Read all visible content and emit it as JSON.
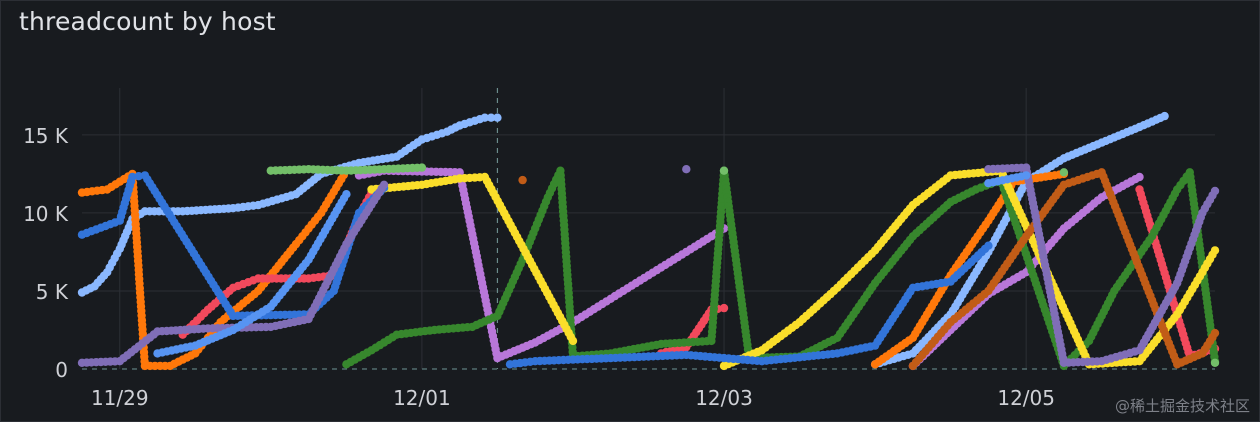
{
  "panel": {
    "title": "threadcount by host"
  },
  "watermark": "@稀土掘金技术社区",
  "chart_data": {
    "type": "scatter",
    "title": "threadcount by host",
    "xlabel": "",
    "ylabel": "",
    "x_domain": [
      "2023-11-28T18:00",
      "2023-12-06T06:00"
    ],
    "ylim": [
      0,
      18000
    ],
    "y_ticks": [
      0,
      5000,
      10000,
      15000
    ],
    "y_tick_labels": [
      "0",
      "5 K",
      "10 K",
      "15 K"
    ],
    "x_ticks": [
      "2023-11-29T00:00",
      "2023-12-01T00:00",
      "2023-12-03T00:00",
      "2023-12-05T00:00"
    ],
    "x_tick_labels": [
      "11/29",
      "12/01",
      "12/03",
      "12/05"
    ],
    "marker_time": "2023-12-01T12:00",
    "grid": true,
    "legend": "none",
    "colors": [
      "#8ab8ff",
      "#ff780a",
      "#f2495c",
      "#b877d9",
      "#37872d",
      "#fade2a",
      "#3274d9",
      "#c15c17",
      "#806eb7",
      "#73bf69",
      "#5794f2"
    ],
    "series": [
      {
        "color": "#8ab8ff",
        "points": [
          [
            "2023-11-28T18:00",
            4900
          ],
          [
            "2023-11-28T20:00",
            5300
          ],
          [
            "2023-11-28T22:00",
            6200
          ],
          [
            "2023-11-29T00:00",
            7700
          ],
          [
            "2023-11-29T02:00",
            9600
          ],
          [
            "2023-11-29T04:00",
            10100
          ],
          [
            "2023-11-29T10:00",
            10100
          ],
          [
            "2023-11-29T18:00",
            10300
          ],
          [
            "2023-11-29T22:00",
            10500
          ],
          [
            "2023-11-30T04:00",
            11200
          ],
          [
            "2023-11-30T08:00",
            12500
          ],
          [
            "2023-11-30T14:00",
            13200
          ],
          [
            "2023-11-30T20:00",
            13600
          ],
          [
            "2023-12-01T00:00",
            14700
          ],
          [
            "2023-12-01T04:00",
            15200
          ],
          [
            "2023-12-01T06:00",
            15600
          ],
          [
            "2023-12-01T10:00",
            16100
          ],
          [
            "2023-12-01T12:00",
            16100
          ],
          [
            "2023-12-04T00:00",
            300
          ],
          [
            "2023-12-04T06:00",
            1000
          ],
          [
            "2023-12-04T12:00",
            3500
          ],
          [
            "2023-12-04T18:00",
            7500
          ],
          [
            "2023-12-05T00:00",
            12000
          ],
          [
            "2023-12-05T06:00",
            13500
          ],
          [
            "2023-12-05T12:00",
            14500
          ],
          [
            "2023-12-05T18:00",
            15500
          ],
          [
            "2023-12-05T22:00",
            16200
          ]
        ]
      },
      {
        "color": "#ff780a",
        "points": [
          [
            "2023-11-28T18:00",
            11300
          ],
          [
            "2023-11-28T22:00",
            11500
          ],
          [
            "2023-11-29T02:00",
            12500
          ],
          [
            "2023-11-29T04:00",
            200
          ],
          [
            "2023-11-29T08:00",
            200
          ],
          [
            "2023-11-29T12:00",
            1000
          ],
          [
            "2023-11-29T16:00",
            3000
          ],
          [
            "2023-11-29T22:00",
            5000
          ],
          [
            "2023-11-30T04:00",
            8000
          ],
          [
            "2023-11-30T08:00",
            10000
          ],
          [
            "2023-11-30T12:00",
            12700
          ],
          [
            "2023-12-04T00:00",
            300
          ],
          [
            "2023-12-04T06:00",
            2000
          ],
          [
            "2023-12-04T12:00",
            6000
          ],
          [
            "2023-12-04T18:00",
            9500
          ],
          [
            "2023-12-04T22:00",
            12000
          ],
          [
            "2023-12-05T06:00",
            12500
          ]
        ]
      },
      {
        "color": "#f2495c",
        "points": [
          [
            "2023-11-29T10:00",
            2200
          ],
          [
            "2023-11-29T14:00",
            3800
          ],
          [
            "2023-11-29T18:00",
            5200
          ],
          [
            "2023-11-29T22:00",
            5800
          ],
          [
            "2023-11-30T06:00",
            5800
          ],
          [
            "2023-11-30T10:00",
            6000
          ],
          [
            "2023-11-30T14:00",
            9800
          ],
          [
            "2023-11-30T16:00",
            11300
          ],
          [
            "2023-12-02T14:00",
            1000
          ],
          [
            "2023-12-02T18:00",
            1400
          ],
          [
            "2023-12-02T22:00",
            3800
          ],
          [
            "2023-12-03T00:00",
            3900
          ],
          [
            "2023-12-05T18:00",
            11500
          ],
          [
            "2023-12-06T02:00",
            800
          ],
          [
            "2023-12-06T06:00",
            1300
          ]
        ]
      },
      {
        "color": "#b877d9",
        "points": [
          [
            "2023-11-30T14:00",
            12400
          ],
          [
            "2023-11-30T18:00",
            12700
          ],
          [
            "2023-12-01T06:00",
            12600
          ],
          [
            "2023-12-01T12:00",
            700
          ],
          [
            "2023-12-01T18:00",
            1700
          ],
          [
            "2023-12-02T00:00",
            3000
          ],
          [
            "2023-12-02T06:00",
            4500
          ],
          [
            "2023-12-02T12:00",
            6000
          ],
          [
            "2023-12-02T18:00",
            7500
          ],
          [
            "2023-12-03T00:00",
            9000
          ],
          [
            "2023-12-04T06:00",
            200
          ],
          [
            "2023-12-04T12:00",
            2500
          ],
          [
            "2023-12-04T18:00",
            4800
          ],
          [
            "2023-12-05T00:00",
            6200
          ],
          [
            "2023-12-05T06:00",
            9000
          ],
          [
            "2023-12-05T12:00",
            11000
          ],
          [
            "2023-12-05T18:00",
            12300
          ]
        ]
      },
      {
        "color": "#37872d",
        "points": [
          [
            "2023-11-30T12:00",
            300
          ],
          [
            "2023-11-30T16:00",
            1200
          ],
          [
            "2023-11-30T20:00",
            2200
          ],
          [
            "2023-12-01T02:00",
            2500
          ],
          [
            "2023-12-01T08:00",
            2700
          ],
          [
            "2023-12-01T12:00",
            3400
          ],
          [
            "2023-12-01T16:00",
            7000
          ],
          [
            "2023-12-01T20:00",
            11000
          ],
          [
            "2023-12-01T22:00",
            12700
          ],
          [
            "2023-12-02T00:00",
            800
          ],
          [
            "2023-12-02T06:00",
            1000
          ],
          [
            "2023-12-02T14:00",
            1600
          ],
          [
            "2023-12-02T22:00",
            1800
          ],
          [
            "2023-12-03T00:00",
            12700
          ],
          [
            "2023-12-03T04:00",
            700
          ],
          [
            "2023-12-03T12:00",
            800
          ],
          [
            "2023-12-03T18:00",
            2000
          ],
          [
            "2023-12-04T00:00",
            5500
          ],
          [
            "2023-12-04T06:00",
            8500
          ],
          [
            "2023-12-04T12:00",
            10700
          ],
          [
            "2023-12-04T16:00",
            11500
          ],
          [
            "2023-12-04T20:00",
            12100
          ],
          [
            "2023-12-05T06:00",
            200
          ],
          [
            "2023-12-05T10:00",
            1800
          ],
          [
            "2023-12-05T14:00",
            5000
          ],
          [
            "2023-12-05T20:00",
            8500
          ],
          [
            "2023-12-06T00:00",
            11500
          ],
          [
            "2023-12-06T02:00",
            12600
          ],
          [
            "2023-12-06T06:00",
            500
          ]
        ]
      },
      {
        "color": "#fade2a",
        "points": [
          [
            "2023-11-30T16:00",
            11500
          ],
          [
            "2023-12-01T00:00",
            11800
          ],
          [
            "2023-12-01T06:00",
            12200
          ],
          [
            "2023-12-01T10:00",
            12300
          ],
          [
            "2023-12-02T00:00",
            1800
          ],
          [
            "2023-12-03T00:00",
            200
          ],
          [
            "2023-12-03T06:00",
            1200
          ],
          [
            "2023-12-03T12:00",
            3000
          ],
          [
            "2023-12-03T18:00",
            5200
          ],
          [
            "2023-12-04T00:00",
            7600
          ],
          [
            "2023-12-04T06:00",
            10500
          ],
          [
            "2023-12-04T12:00",
            12400
          ],
          [
            "2023-12-04T20:00",
            12700
          ],
          [
            "2023-12-05T10:00",
            300
          ],
          [
            "2023-12-05T18:00",
            500
          ],
          [
            "2023-12-06T00:00",
            3500
          ],
          [
            "2023-12-06T04:00",
            6200
          ],
          [
            "2023-12-06T06:00",
            7600
          ]
        ]
      },
      {
        "color": "#3274d9",
        "points": [
          [
            "2023-11-28T18:00",
            8600
          ],
          [
            "2023-11-29T00:00",
            9500
          ],
          [
            "2023-11-29T02:00",
            12300
          ],
          [
            "2023-11-29T04:00",
            12400
          ],
          [
            "2023-11-29T18:00",
            3400
          ],
          [
            "2023-11-30T06:00",
            3500
          ],
          [
            "2023-11-30T10:00",
            5000
          ],
          [
            "2023-11-30T14:00",
            10000
          ],
          [
            "2023-11-30T18:00",
            11600
          ],
          [
            "2023-12-01T14:00",
            300
          ],
          [
            "2023-12-01T18:00",
            500
          ],
          [
            "2023-12-02T06:00",
            700
          ],
          [
            "2023-12-02T18:00",
            900
          ],
          [
            "2023-12-03T06:00",
            500
          ],
          [
            "2023-12-03T18:00",
            1000
          ],
          [
            "2023-12-04T00:00",
            1500
          ],
          [
            "2023-12-04T06:00",
            5200
          ],
          [
            "2023-12-04T12:00",
            5600
          ],
          [
            "2023-12-04T18:00",
            7900
          ]
        ]
      },
      {
        "color": "#c15c17",
        "points": [
          [
            "2023-12-01T16:00",
            12100
          ],
          [
            "2023-12-04T06:00",
            200
          ],
          [
            "2023-12-04T12:00",
            3000
          ],
          [
            "2023-12-04T18:00",
            5000
          ],
          [
            "2023-12-05T00:00",
            8500
          ],
          [
            "2023-12-05T06:00",
            11800
          ],
          [
            "2023-12-05T12:00",
            12600
          ],
          [
            "2023-12-06T00:00",
            300
          ],
          [
            "2023-12-06T04:00",
            1000
          ],
          [
            "2023-12-06T06:00",
            2300
          ]
        ]
      },
      {
        "color": "#806eb7",
        "points": [
          [
            "2023-11-28T18:00",
            400
          ],
          [
            "2023-11-29T00:00",
            500
          ],
          [
            "2023-11-29T06:00",
            2400
          ],
          [
            "2023-11-29T14:00",
            2600
          ],
          [
            "2023-11-30T00:00",
            2700
          ],
          [
            "2023-11-30T06:00",
            3200
          ],
          [
            "2023-11-30T12:00",
            8000
          ],
          [
            "2023-11-30T18:00",
            11800
          ],
          [
            "2023-12-02T18:00",
            12800
          ],
          [
            "2023-12-04T18:00",
            12800
          ],
          [
            "2023-12-05T00:00",
            12900
          ],
          [
            "2023-12-05T06:00",
            400
          ],
          [
            "2023-12-05T12:00",
            500
          ],
          [
            "2023-12-05T18:00",
            1200
          ],
          [
            "2023-12-06T00:00",
            5500
          ],
          [
            "2023-12-06T04:00",
            10000
          ],
          [
            "2023-12-06T06:00",
            11400
          ]
        ]
      },
      {
        "color": "#73bf69",
        "points": [
          [
            "2023-11-30T00:00",
            12700
          ],
          [
            "2023-11-30T06:00",
            12800
          ],
          [
            "2023-11-30T12:00",
            12700
          ],
          [
            "2023-12-01T00:00",
            12900
          ],
          [
            "2023-12-03T00:00",
            12700
          ],
          [
            "2023-12-05T06:00",
            12600
          ],
          [
            "2023-12-06T06:00",
            400
          ]
        ]
      },
      {
        "color": "#5794f2",
        "points": [
          [
            "2023-11-29T06:00",
            1000
          ],
          [
            "2023-11-29T12:00",
            1500
          ],
          [
            "2023-11-29T18:00",
            2500
          ],
          [
            "2023-11-30T00:00",
            4000
          ],
          [
            "2023-11-30T06:00",
            7000
          ],
          [
            "2023-11-30T12:00",
            11200
          ],
          [
            "2023-12-04T18:00",
            11900
          ],
          [
            "2023-12-05T00:00",
            12400
          ]
        ]
      }
    ]
  }
}
